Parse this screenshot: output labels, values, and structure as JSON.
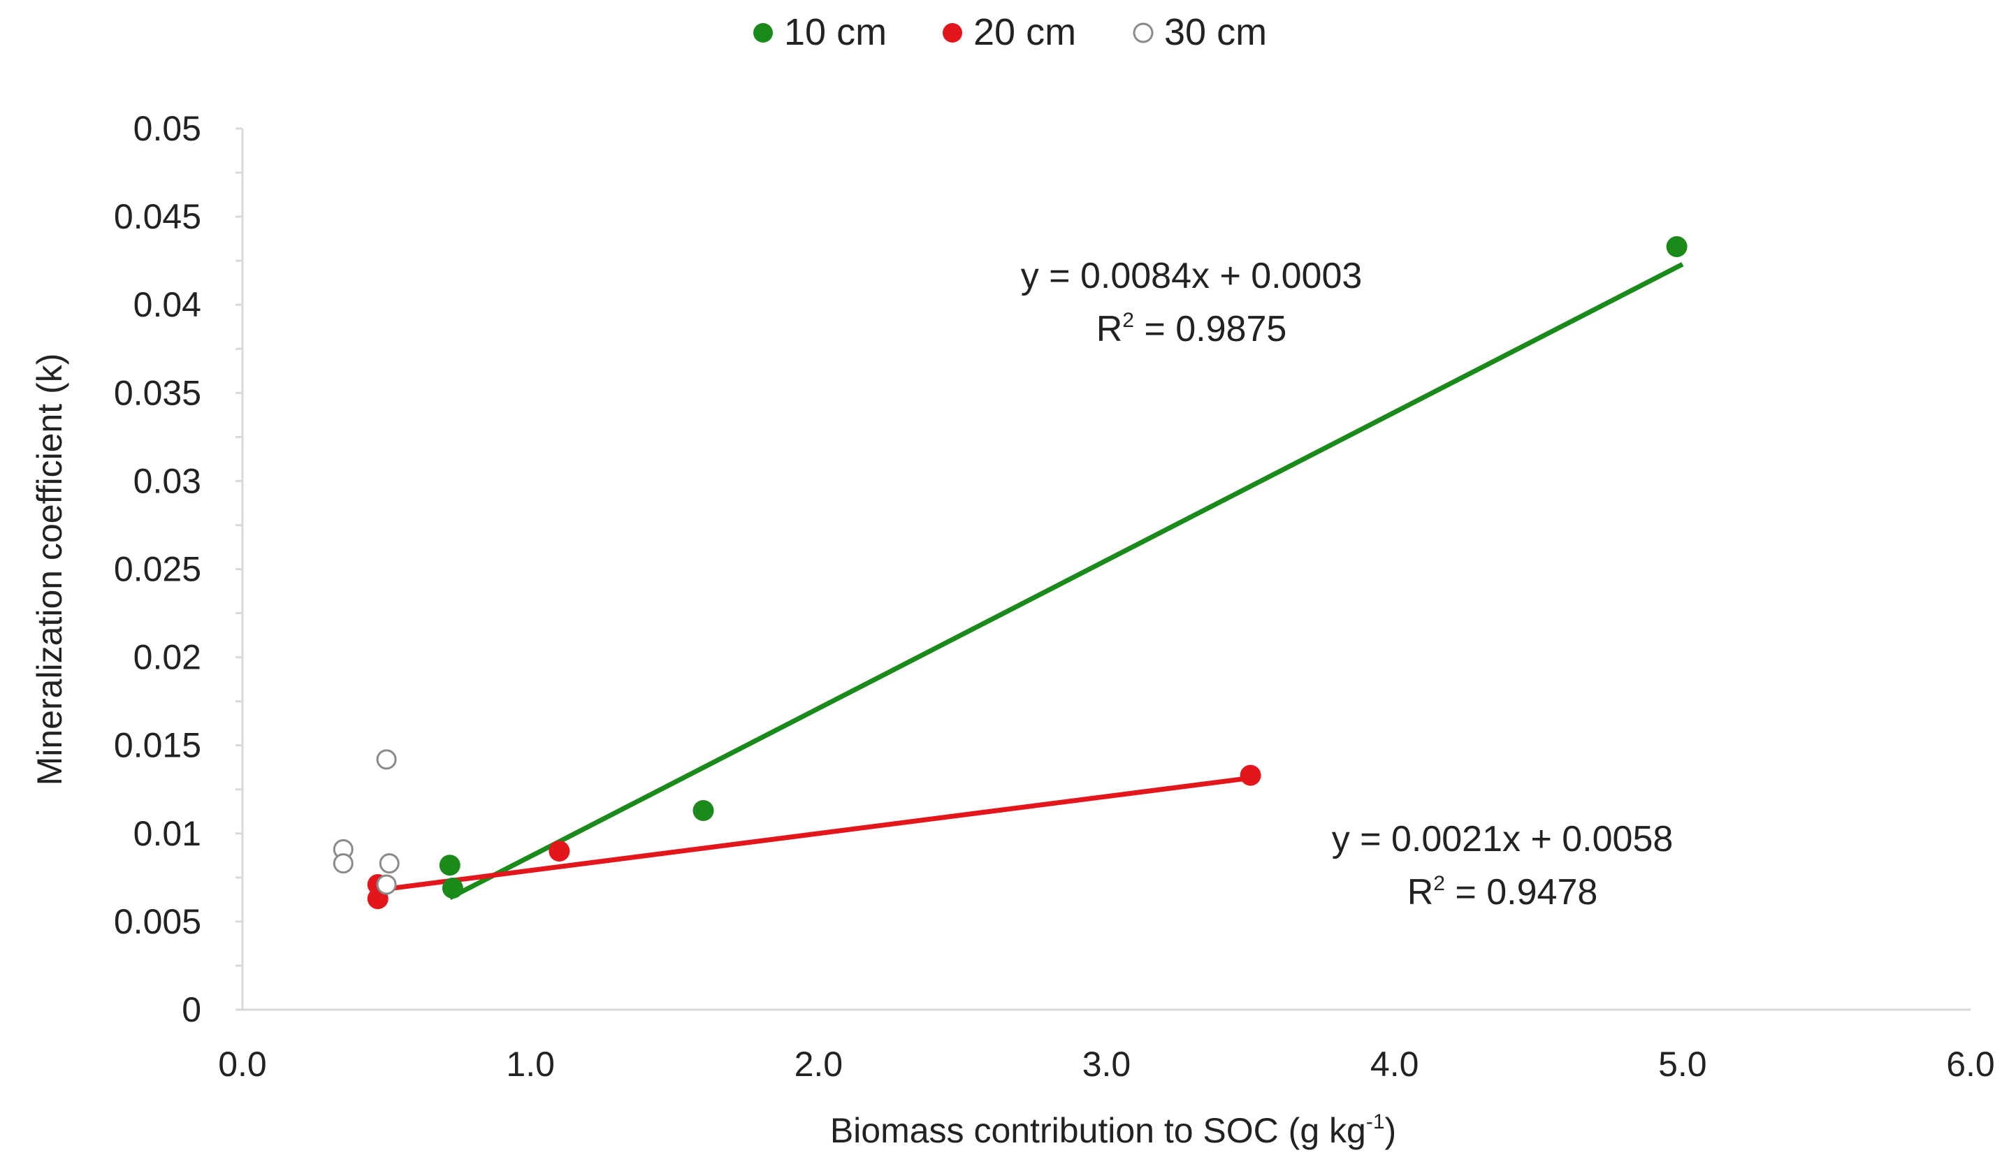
{
  "chart_data": {
    "type": "scatter",
    "xlabel": "Biomass contribution to SOC (g kg",
    "xlabel_sup": "-1",
    "xlabel_end": ")",
    "ylabel": "Mineralization coefficient (k)",
    "xlim": [
      0,
      6
    ],
    "ylim": [
      0,
      0.05
    ],
    "x_ticks": [
      "0.0",
      "1.0",
      "2.0",
      "3.0",
      "4.0",
      "5.0",
      "6.0"
    ],
    "y_ticks": [
      "0",
      "0.005",
      "0.01",
      "0.015",
      "0.02",
      "0.025",
      "0.03",
      "0.035",
      "0.04",
      "0.045",
      "0.05"
    ],
    "grid": false,
    "legend_position": "top",
    "series": [
      {
        "name": "10 cm",
        "color": "#1a8a1a",
        "marker": "filled-circle",
        "points": [
          [
            0.72,
            0.0082
          ],
          [
            0.73,
            0.0069
          ],
          [
            1.6,
            0.0113
          ],
          [
            4.98,
            0.0433
          ]
        ],
        "trendline": {
          "x_range": [
            0.72,
            5.0
          ],
          "slope": 0.0084,
          "intercept": 0.0003,
          "equation": "y = 0.0084x + 0.0003",
          "r2_prefix": "R",
          "r2_sup": "2",
          "r2_value": " = 0.9875"
        }
      },
      {
        "name": "20 cm",
        "color": "#e3161b",
        "marker": "filled-circle",
        "points": [
          [
            0.47,
            0.0063
          ],
          [
            0.47,
            0.0071
          ],
          [
            1.1,
            0.009
          ],
          [
            3.5,
            0.0133
          ]
        ],
        "trendline": {
          "x_range": [
            0.47,
            3.5
          ],
          "slope": 0.0021,
          "intercept": 0.0058,
          "equation": "y = 0.0021x + 0.0058",
          "r2_prefix": "R",
          "r2_sup": "2",
          "r2_value": " = 0.9478"
        }
      },
      {
        "name": "30 cm",
        "color": "#8a8a8a",
        "marker": "open-circle",
        "points": [
          [
            0.35,
            0.0091
          ],
          [
            0.35,
            0.0083
          ],
          [
            0.5,
            0.0142
          ],
          [
            0.51,
            0.0083
          ],
          [
            0.5,
            0.0071
          ]
        ]
      }
    ]
  }
}
